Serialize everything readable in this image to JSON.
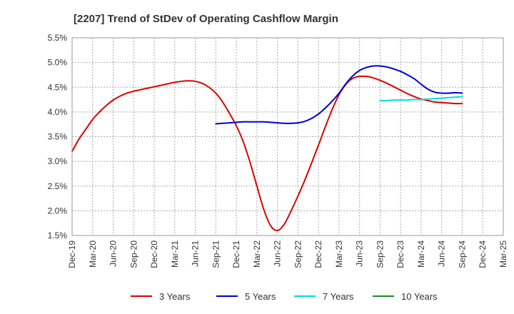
{
  "chart_data": {
    "type": "line",
    "title": "[2207]  Trend of StDev of Operating Cashflow Margin",
    "xlabel": "",
    "ylabel": "",
    "ylim": [
      1.5,
      5.5
    ],
    "y_ticks": [
      "1.5%",
      "2.0%",
      "2.5%",
      "3.0%",
      "3.5%",
      "4.0%",
      "4.5%",
      "5.0%",
      "5.5%"
    ],
    "x_ticks": [
      "Dec-19",
      "Mar-20",
      "Jun-20",
      "Sep-20",
      "Dec-20",
      "Mar-21",
      "Jun-21",
      "Sep-21",
      "Dec-21",
      "Mar-22",
      "Jun-22",
      "Sep-22",
      "Dec-22",
      "Mar-23",
      "Jun-23",
      "Sep-23",
      "Dec-23",
      "Mar-24",
      "Jun-24",
      "Sep-24",
      "Dec-24",
      "Mar-25"
    ],
    "grid": true,
    "legend_position": "bottom",
    "series": [
      {
        "name": "3 Years",
        "color": "#dd0000",
        "points": [
          [
            "Dec-19",
            3.2
          ],
          [
            "Jan-20",
            3.45
          ],
          [
            "Feb-20",
            3.65
          ],
          [
            "Mar-20",
            3.85
          ],
          [
            "Apr-20",
            4.0
          ],
          [
            "May-20",
            4.13
          ],
          [
            "Jun-20",
            4.24
          ],
          [
            "Jul-20",
            4.32
          ],
          [
            "Aug-20",
            4.38
          ],
          [
            "Sep-20",
            4.42
          ],
          [
            "Oct-20",
            4.45
          ],
          [
            "Nov-20",
            4.48
          ],
          [
            "Dec-20",
            4.51
          ],
          [
            "Jan-21",
            4.54
          ],
          [
            "Feb-21",
            4.57
          ],
          [
            "Mar-21",
            4.6
          ],
          [
            "Apr-21",
            4.62
          ],
          [
            "May-21",
            4.63
          ],
          [
            "Jun-21",
            4.62
          ],
          [
            "Jul-21",
            4.58
          ],
          [
            "Aug-21",
            4.5
          ],
          [
            "Sep-21",
            4.38
          ],
          [
            "Oct-21",
            4.2
          ],
          [
            "Nov-21",
            3.97
          ],
          [
            "Dec-21",
            3.72
          ],
          [
            "Jan-22",
            3.4
          ],
          [
            "Feb-22",
            2.98
          ],
          [
            "Mar-22",
            2.5
          ],
          [
            "Apr-22",
            2.03
          ],
          [
            "May-22",
            1.7
          ],
          [
            "Jun-22",
            1.6
          ],
          [
            "Jul-22",
            1.73
          ],
          [
            "Aug-22",
            2.0
          ],
          [
            "Sep-22",
            2.3
          ],
          [
            "Oct-22",
            2.62
          ],
          [
            "Nov-22",
            2.97
          ],
          [
            "Dec-22",
            3.33
          ],
          [
            "Jan-23",
            3.7
          ],
          [
            "Feb-23",
            4.05
          ],
          [
            "Mar-23",
            4.35
          ],
          [
            "Apr-23",
            4.56
          ],
          [
            "May-23",
            4.68
          ],
          [
            "Jun-23",
            4.72
          ],
          [
            "Jul-23",
            4.72
          ],
          [
            "Aug-23",
            4.69
          ],
          [
            "Sep-23",
            4.64
          ],
          [
            "Oct-23",
            4.58
          ],
          [
            "Nov-23",
            4.51
          ],
          [
            "Dec-23",
            4.44
          ],
          [
            "Jan-24",
            4.37
          ],
          [
            "Feb-24",
            4.31
          ],
          [
            "Mar-24",
            4.26
          ],
          [
            "Apr-24",
            4.23
          ],
          [
            "May-24",
            4.2
          ],
          [
            "Jun-24",
            4.19
          ],
          [
            "Jul-24",
            4.18
          ],
          [
            "Aug-24",
            4.17
          ],
          [
            "Sep-24",
            4.17
          ]
        ]
      },
      {
        "name": "5 Years",
        "color": "#0000cc",
        "points": [
          [
            "Sep-21",
            3.76
          ],
          [
            "Oct-21",
            3.77
          ],
          [
            "Nov-21",
            3.78
          ],
          [
            "Dec-21",
            3.79
          ],
          [
            "Jan-22",
            3.8
          ],
          [
            "Feb-22",
            3.8
          ],
          [
            "Mar-22",
            3.8
          ],
          [
            "Apr-22",
            3.8
          ],
          [
            "May-22",
            3.79
          ],
          [
            "Jun-22",
            3.78
          ],
          [
            "Jul-22",
            3.77
          ],
          [
            "Aug-22",
            3.77
          ],
          [
            "Sep-22",
            3.78
          ],
          [
            "Oct-22",
            3.81
          ],
          [
            "Nov-22",
            3.87
          ],
          [
            "Dec-22",
            3.96
          ],
          [
            "Jan-23",
            4.08
          ],
          [
            "Feb-23",
            4.22
          ],
          [
            "Mar-23",
            4.38
          ],
          [
            "Apr-23",
            4.57
          ],
          [
            "May-23",
            4.73
          ],
          [
            "Jun-23",
            4.84
          ],
          [
            "Jul-23",
            4.9
          ],
          [
            "Aug-23",
            4.93
          ],
          [
            "Sep-23",
            4.93
          ],
          [
            "Oct-23",
            4.91
          ],
          [
            "Nov-23",
            4.87
          ],
          [
            "Dec-23",
            4.82
          ],
          [
            "Jan-24",
            4.75
          ],
          [
            "Feb-24",
            4.67
          ],
          [
            "Mar-24",
            4.56
          ],
          [
            "Apr-24",
            4.46
          ],
          [
            "May-24",
            4.4
          ],
          [
            "Jun-24",
            4.38
          ],
          [
            "Jul-24",
            4.38
          ],
          [
            "Aug-24",
            4.39
          ],
          [
            "Sep-24",
            4.38
          ]
        ]
      },
      {
        "name": "7 Years",
        "color": "#00dddd",
        "points": [
          [
            "Sep-23",
            4.23
          ],
          [
            "Oct-23",
            4.23
          ],
          [
            "Nov-23",
            4.24
          ],
          [
            "Dec-23",
            4.24
          ],
          [
            "Jan-24",
            4.24
          ],
          [
            "Feb-24",
            4.25
          ],
          [
            "Mar-24",
            4.25
          ],
          [
            "Apr-24",
            4.26
          ],
          [
            "May-24",
            4.27
          ],
          [
            "Jun-24",
            4.28
          ],
          [
            "Jul-24",
            4.29
          ],
          [
            "Aug-24",
            4.3
          ],
          [
            "Sep-24",
            4.31
          ]
        ]
      },
      {
        "name": "10 Years",
        "color": "#228B22",
        "points": []
      }
    ]
  }
}
